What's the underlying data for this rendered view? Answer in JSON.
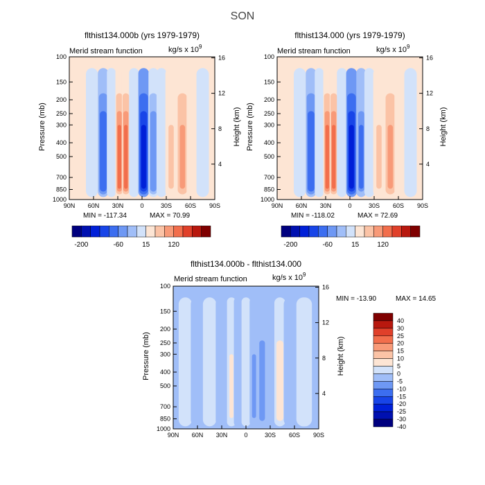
{
  "figure": {
    "title": "SON"
  },
  "chart_data": [
    {
      "type": "heatmap",
      "title": "flthist134.000b (yrs 1979-1979)",
      "subtitle_left": "Merid stream function",
      "units": "kg/s x 10",
      "units_exp": "9",
      "ylabel": "Pressure (mb)",
      "ylabel_right": "Height (km)",
      "x_ticks": [
        "90N",
        "60N",
        "30N",
        "0",
        "30S",
        "60S",
        "90S"
      ],
      "y_ticks": [
        "100",
        "150",
        "200",
        "250",
        "300",
        "400",
        "500",
        "700",
        "850",
        "1000"
      ],
      "y_right_ticks": [
        "16",
        "12",
        "8",
        "4"
      ],
      "min_text": "MIN = -117.34",
      "max_text": "MAX =   70.99",
      "colorbar_labels": [
        "-200",
        "-60",
        "15",
        "120"
      ],
      "cells": [
        {
          "lat": -75,
          "v": 2
        },
        {
          "lat": -62,
          "v": -8
        },
        {
          "lat": -48,
          "v": -55
        },
        {
          "lat": -38,
          "v": -5
        },
        {
          "lat": -28,
          "v": 50
        },
        {
          "lat": -20,
          "v": 55
        },
        {
          "lat": -10,
          "v": -8
        },
        {
          "lat": 2,
          "v": -110
        },
        {
          "lat": 14,
          "v": -40
        },
        {
          "lat": 24,
          "v": -5
        },
        {
          "lat": 36,
          "v": 18
        },
        {
          "lat": 50,
          "v": 30
        },
        {
          "lat": 62,
          "v": 8
        },
        {
          "lat": 75,
          "v": -4
        }
      ]
    },
    {
      "type": "heatmap",
      "title": "flthist134.000 (yrs 1979-1979)",
      "subtitle_left": "Merid stream function",
      "units": "kg/s x 10",
      "units_exp": "9",
      "ylabel": "Pressure (mb)",
      "ylabel_right": "Height (km)",
      "x_ticks": [
        "90N",
        "60N",
        "30N",
        "0",
        "30S",
        "60S",
        "90S"
      ],
      "y_ticks": [
        "100",
        "150",
        "200",
        "250",
        "300",
        "400",
        "500",
        "700",
        "850",
        "1000"
      ],
      "y_right_ticks": [
        "16",
        "12",
        "8",
        "4"
      ],
      "min_text": "MIN = -118.02",
      "max_text": "MAX =   72.69",
      "colorbar_labels": [
        "-200",
        "-60",
        "15",
        "120"
      ],
      "cells": [
        {
          "lat": -75,
          "v": 2
        },
        {
          "lat": -62,
          "v": -8
        },
        {
          "lat": -48,
          "v": -55
        },
        {
          "lat": -38,
          "v": -5
        },
        {
          "lat": -28,
          "v": 52
        },
        {
          "lat": -20,
          "v": 58
        },
        {
          "lat": -10,
          "v": -8
        },
        {
          "lat": 2,
          "v": -112
        },
        {
          "lat": 14,
          "v": -42
        },
        {
          "lat": 24,
          "v": -5
        },
        {
          "lat": 36,
          "v": 18
        },
        {
          "lat": 50,
          "v": 30
        },
        {
          "lat": 62,
          "v": 8
        },
        {
          "lat": 75,
          "v": -4
        }
      ]
    },
    {
      "type": "heatmap",
      "title": "flthist134.000b - flthist134.000",
      "subtitle_left": "Merid stream function",
      "units": "kg/s x 10",
      "units_exp": "9",
      "ylabel": "Pressure (mb)",
      "ylabel_right": "Height (km)",
      "x_ticks": [
        "90N",
        "60N",
        "30N",
        "0",
        "30S",
        "60S",
        "90S"
      ],
      "y_ticks": [
        "100",
        "150",
        "200",
        "250",
        "300",
        "400",
        "500",
        "700",
        "850",
        "1000"
      ],
      "y_right_ticks": [
        "16",
        "12",
        "8",
        "4"
      ],
      "min_text": "MIN = -13.90",
      "max_text": "MAX =  14.65",
      "colorbar_labels": [
        "40",
        "30",
        "25",
        "20",
        "15",
        "10",
        "5",
        "0",
        "-5",
        "-10",
        "-15",
        "-20",
        "-25",
        "-30",
        "-40"
      ],
      "cells": [
        {
          "lat": -75,
          "v": -2
        },
        {
          "lat": -60,
          "v": 2
        },
        {
          "lat": -45,
          "v": -3
        },
        {
          "lat": -30,
          "v": 2
        },
        {
          "lat": -18,
          "v": -6
        },
        {
          "lat": -10,
          "v": 3
        },
        {
          "lat": 0,
          "v": -2
        },
        {
          "lat": 10,
          "v": 6
        },
        {
          "lat": 20,
          "v": 9
        },
        {
          "lat": 30,
          "v": 4
        },
        {
          "lat": 42,
          "v": -9
        },
        {
          "lat": 55,
          "v": 2
        },
        {
          "lat": 72,
          "v": -2
        }
      ]
    }
  ],
  "colors": {
    "main": [
      "#00007f",
      "#0010b0",
      "#0020d8",
      "#1845e8",
      "#3c6ef0",
      "#6e98f4",
      "#a0bef8",
      "#d2e2fa",
      "#fde5d4",
      "#fbc3a6",
      "#f89a78",
      "#f26e4c",
      "#e0402a",
      "#b8180e",
      "#7f0000"
    ],
    "diff": [
      "#7f0000",
      "#b8180e",
      "#e0402a",
      "#f26e4c",
      "#f89a78",
      "#fbc3a6",
      "#fde5d4",
      "#d2e2fa",
      "#a0bef8",
      "#6e98f4",
      "#3c6ef0",
      "#1845e8",
      "#0020d8",
      "#0010b0",
      "#00007f"
    ]
  }
}
